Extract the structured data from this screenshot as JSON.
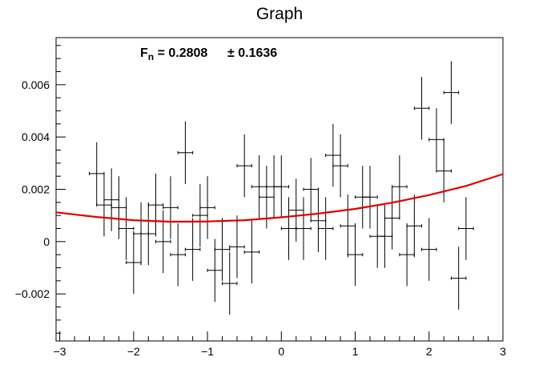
{
  "chart_data": {
    "type": "scatter",
    "title": "Graph",
    "xlabel": "",
    "ylabel": "",
    "xlim": [
      -3.05,
      3.0
    ],
    "ylim": [
      -0.0038,
      0.0078
    ],
    "grid": false,
    "legend": "none",
    "x_ticks": [
      -3,
      -2,
      -1,
      0,
      1,
      2,
      3
    ],
    "x_tick_labels": [
      "−3",
      "−2",
      "−1",
      "0",
      "1",
      "2",
      "3"
    ],
    "y_ticks": [
      -0.002,
      0,
      0.002,
      0.004,
      0.006
    ],
    "y_tick_labels": [
      "−0.002",
      "0",
      "0.002",
      "0.004",
      "0.006"
    ],
    "annotation": {
      "symbol": "F",
      "subscript": "n",
      "value_text": " = 0.2808",
      "error_text": "± 0.1636"
    },
    "colors": {
      "points": "#000000",
      "fit": "#e00000",
      "axis": "#000000"
    },
    "points": [
      {
        "x": -2.5,
        "y": 0.0026,
        "ex": 0.1,
        "ey": 0.0012
      },
      {
        "x": -2.4,
        "y": 0.0014,
        "ex": 0.1,
        "ey": 0.0012
      },
      {
        "x": -2.3,
        "y": 0.0016,
        "ex": 0.1,
        "ey": 0.0012
      },
      {
        "x": -2.2,
        "y": 0.0013,
        "ex": 0.1,
        "ey": 0.0012
      },
      {
        "x": -2.1,
        "y": 0.0005,
        "ex": 0.1,
        "ey": 0.0012
      },
      {
        "x": -2.0,
        "y": -0.0008,
        "ex": 0.1,
        "ey": 0.0012
      },
      {
        "x": -1.9,
        "y": 0.0003,
        "ex": 0.1,
        "ey": 0.0012
      },
      {
        "x": -1.8,
        "y": 0.0003,
        "ex": 0.1,
        "ey": 0.0012
      },
      {
        "x": -1.7,
        "y": 0.0014,
        "ex": 0.1,
        "ey": 0.0012
      },
      {
        "x": -1.6,
        "y": 0.0,
        "ex": 0.1,
        "ey": 0.0012
      },
      {
        "x": -1.5,
        "y": 0.0013,
        "ex": 0.1,
        "ey": 0.0012
      },
      {
        "x": -1.4,
        "y": -0.0005,
        "ex": 0.1,
        "ey": 0.0012
      },
      {
        "x": -1.3,
        "y": 0.0034,
        "ex": 0.1,
        "ey": 0.0012
      },
      {
        "x": -1.2,
        "y": -0.0003,
        "ex": 0.1,
        "ey": 0.0012
      },
      {
        "x": -1.1,
        "y": 0.001,
        "ex": 0.1,
        "ey": 0.0012
      },
      {
        "x": -1.0,
        "y": 0.0013,
        "ex": 0.1,
        "ey": 0.0012
      },
      {
        "x": -0.9,
        "y": -0.0011,
        "ex": 0.1,
        "ey": 0.0012
      },
      {
        "x": -0.8,
        "y": -0.0003,
        "ex": 0.1,
        "ey": 0.0012
      },
      {
        "x": -0.7,
        "y": -0.0016,
        "ex": 0.1,
        "ey": 0.0012
      },
      {
        "x": -0.6,
        "y": -0.0002,
        "ex": 0.1,
        "ey": 0.0012
      },
      {
        "x": -0.5,
        "y": 0.0029,
        "ex": 0.1,
        "ey": 0.0012
      },
      {
        "x": -0.4,
        "y": -0.0004,
        "ex": 0.1,
        "ey": 0.0012
      },
      {
        "x": -0.3,
        "y": 0.0021,
        "ex": 0.1,
        "ey": 0.0012
      },
      {
        "x": -0.2,
        "y": 0.0017,
        "ex": 0.1,
        "ey": 0.0012
      },
      {
        "x": -0.1,
        "y": 0.0021,
        "ex": 0.1,
        "ey": 0.0012
      },
      {
        "x": 0.0,
        "y": 0.0021,
        "ex": 0.1,
        "ey": 0.0012
      },
      {
        "x": 0.1,
        "y": 0.0005,
        "ex": 0.1,
        "ey": 0.0012
      },
      {
        "x": 0.2,
        "y": 0.0012,
        "ex": 0.1,
        "ey": 0.0012
      },
      {
        "x": 0.3,
        "y": 0.0005,
        "ex": 0.1,
        "ey": 0.0012
      },
      {
        "x": 0.4,
        "y": 0.002,
        "ex": 0.1,
        "ey": 0.0012
      },
      {
        "x": 0.5,
        "y": 0.0008,
        "ex": 0.1,
        "ey": 0.0012
      },
      {
        "x": 0.6,
        "y": 0.0005,
        "ex": 0.1,
        "ey": 0.0012
      },
      {
        "x": 0.7,
        "y": 0.0033,
        "ex": 0.1,
        "ey": 0.0012
      },
      {
        "x": 0.8,
        "y": 0.0029,
        "ex": 0.1,
        "ey": 0.0012
      },
      {
        "x": 0.9,
        "y": 0.0006,
        "ex": 0.1,
        "ey": 0.0012
      },
      {
        "x": 1.0,
        "y": -0.0005,
        "ex": 0.1,
        "ey": 0.0012
      },
      {
        "x": 1.1,
        "y": 0.0017,
        "ex": 0.1,
        "ey": 0.0012
      },
      {
        "x": 1.2,
        "y": 0.0017,
        "ex": 0.1,
        "ey": 0.0012
      },
      {
        "x": 1.3,
        "y": 0.0002,
        "ex": 0.1,
        "ey": 0.0012
      },
      {
        "x": 1.4,
        "y": 0.0002,
        "ex": 0.1,
        "ey": 0.0012
      },
      {
        "x": 1.5,
        "y": 0.0009,
        "ex": 0.1,
        "ey": 0.0012
      },
      {
        "x": 1.6,
        "y": 0.0021,
        "ex": 0.1,
        "ey": 0.0012
      },
      {
        "x": 1.7,
        "y": -0.0005,
        "ex": 0.1,
        "ey": 0.0012
      },
      {
        "x": 1.8,
        "y": 0.0006,
        "ex": 0.1,
        "ey": 0.0012
      },
      {
        "x": 1.9,
        "y": 0.0051,
        "ex": 0.1,
        "ey": 0.0012
      },
      {
        "x": 2.0,
        "y": -0.0003,
        "ex": 0.1,
        "ey": 0.0012
      },
      {
        "x": 2.1,
        "y": 0.0039,
        "ex": 0.1,
        "ey": 0.0012
      },
      {
        "x": 2.2,
        "y": 0.0027,
        "ex": 0.1,
        "ey": 0.0012
      },
      {
        "x": 2.3,
        "y": 0.0057,
        "ex": 0.1,
        "ey": 0.0012
      },
      {
        "x": 2.4,
        "y": -0.0014,
        "ex": 0.1,
        "ey": 0.0012
      },
      {
        "x": 2.5,
        "y": 0.0005,
        "ex": 0.1,
        "ey": 0.0012
      }
    ],
    "fit_curve": {
      "type": "quadratic",
      "x": [
        -3.05,
        -2.5,
        -2.0,
        -1.5,
        -1.0,
        -0.5,
        0.0,
        0.5,
        1.0,
        1.5,
        2.0,
        2.5,
        3.0
      ],
      "y": [
        0.00112,
        0.00094,
        0.00082,
        0.00076,
        0.00077,
        0.00082,
        0.00093,
        0.00107,
        0.00125,
        0.00149,
        0.00178,
        0.00213,
        0.00258
      ]
    }
  }
}
